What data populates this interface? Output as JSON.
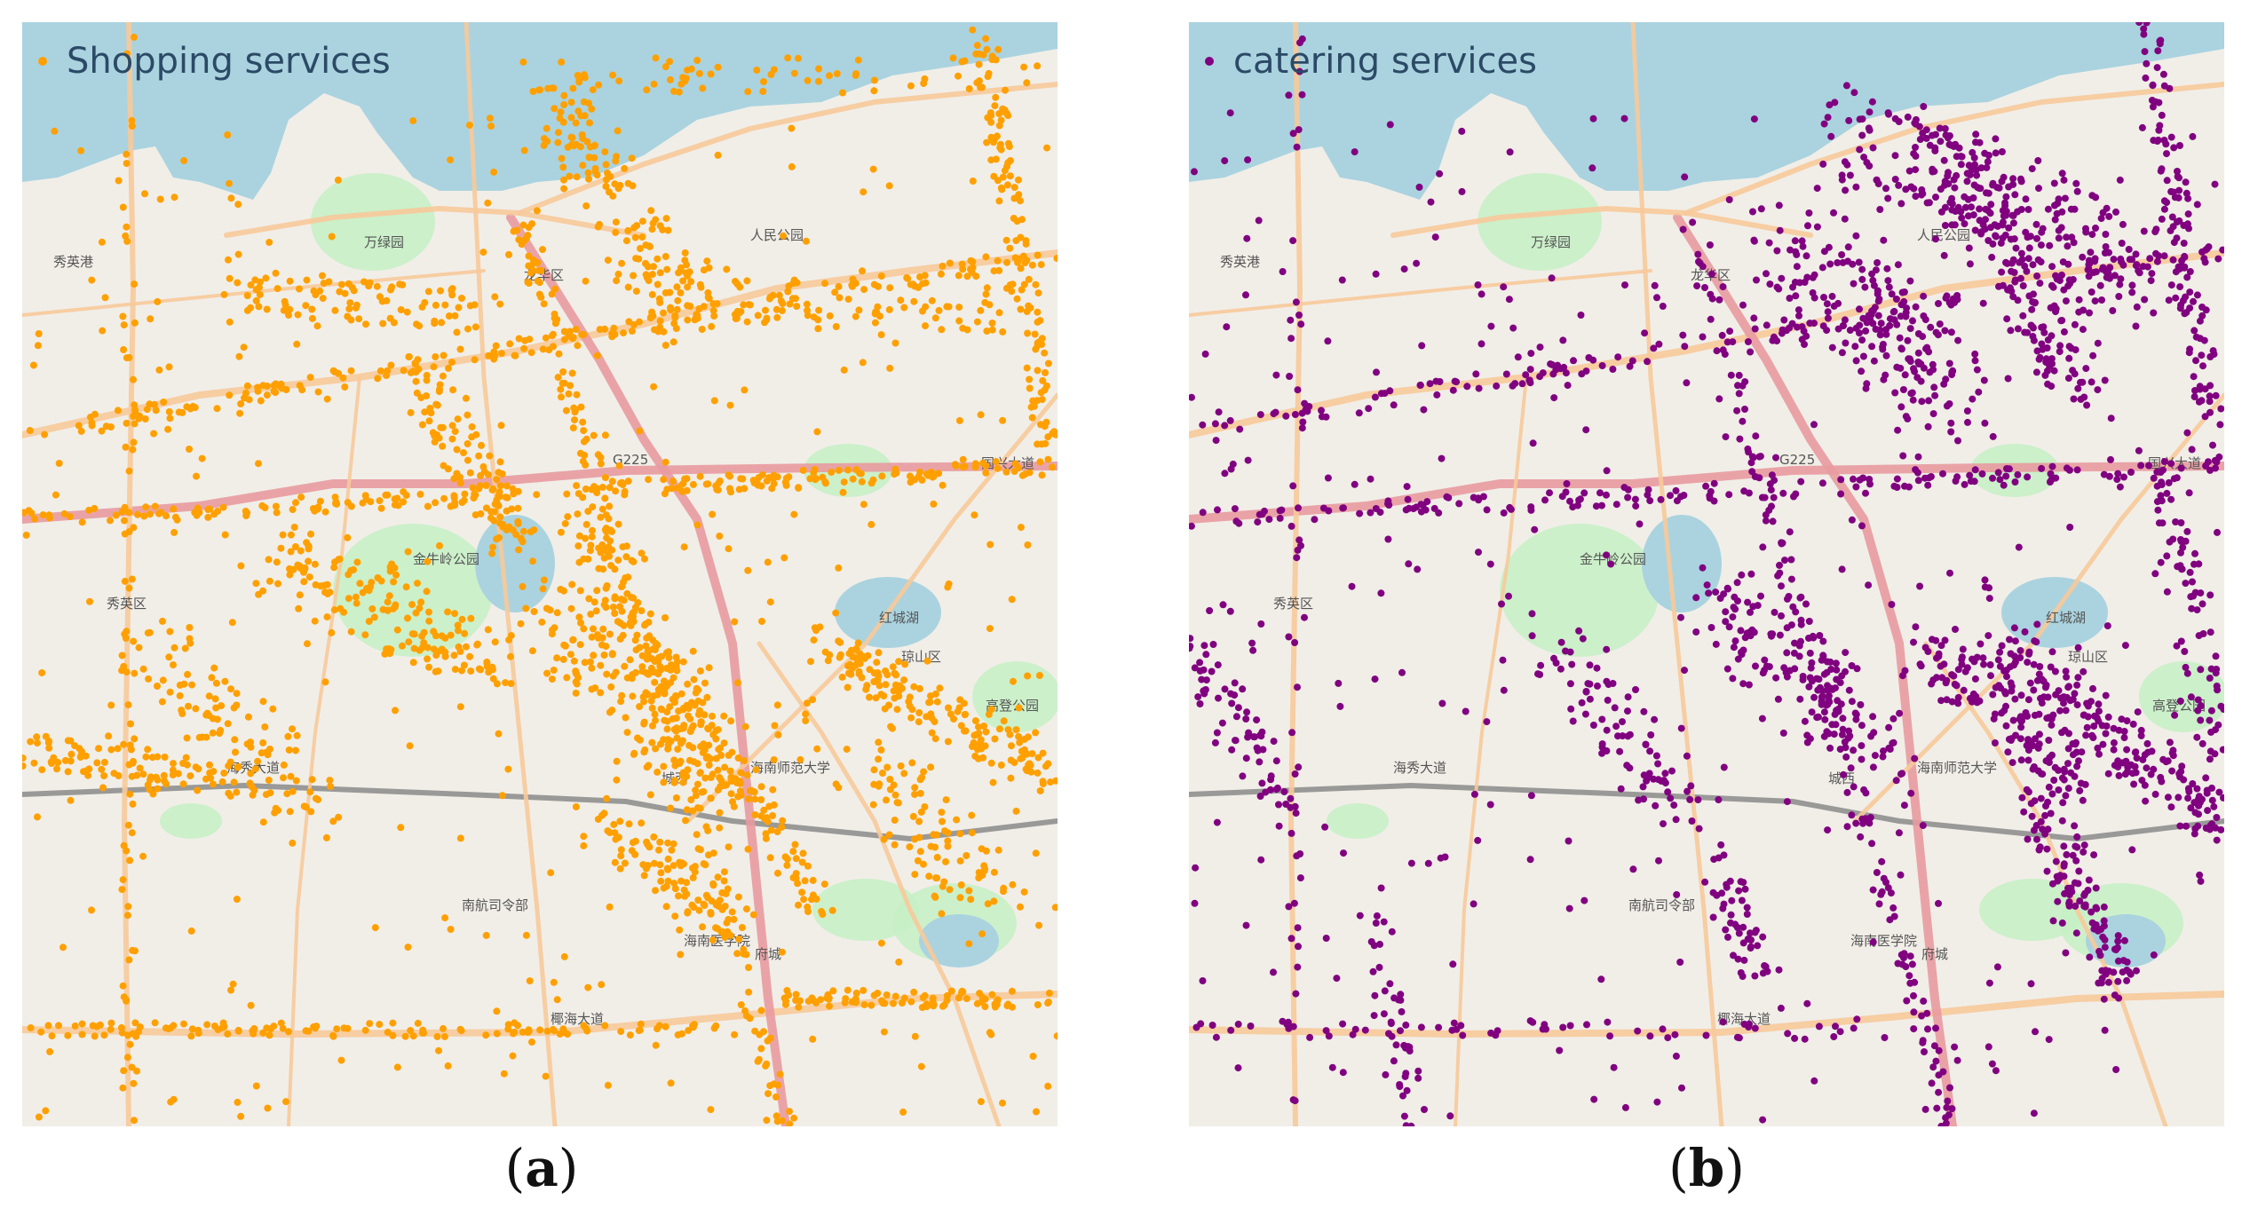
{
  "panels": [
    {
      "id": "a",
      "legend_label": "Shopping services",
      "point_color": "#FFA000",
      "caption_letter": "a"
    },
    {
      "id": "b",
      "legend_label": "catering services",
      "point_color": "#800080",
      "caption_letter": "b"
    }
  ],
  "basemap": {
    "water_color": "#aad3df",
    "park_color": "#c8f0c6",
    "land_color": "#f1eee8",
    "major_road_color": "#f7c99a",
    "trunk_road_color": "#e89aa0",
    "rail_color": "#8f8f8f",
    "labels": [
      "秀英港",
      "万绿园",
      "人民公园",
      "龙华区",
      "G225",
      "国兴大道",
      "金牛岭公园",
      "秀英区",
      "红城湖",
      "琼山区",
      "海南师范大学",
      "城西",
      "南航司令部",
      "海南医学院",
      "椰海大道",
      "高登公园",
      "海秀大道",
      "府城"
    ]
  }
}
